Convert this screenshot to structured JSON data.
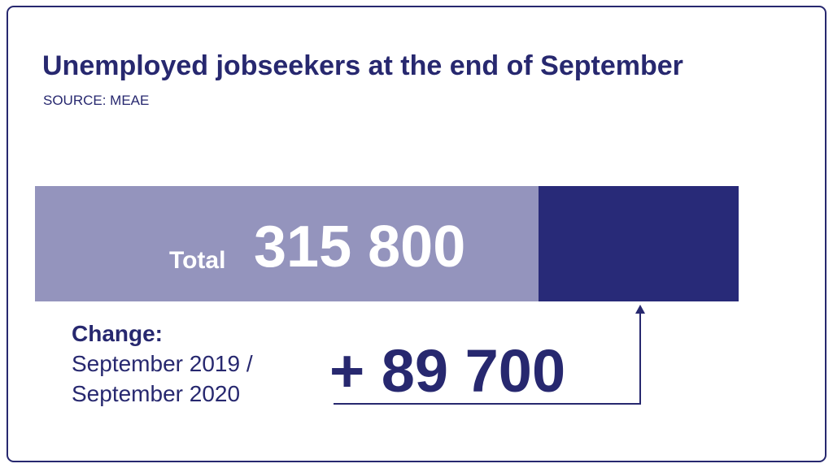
{
  "header": {
    "title": "Unemployed jobseekers at the end of September",
    "source": "SOURCE: MEAE"
  },
  "total": {
    "label": "Total",
    "value": "315 800"
  },
  "change": {
    "label": "Change:",
    "period_line1": "September 2019 /",
    "period_line2": "September 2020",
    "value": "+ 89 700"
  }
}
